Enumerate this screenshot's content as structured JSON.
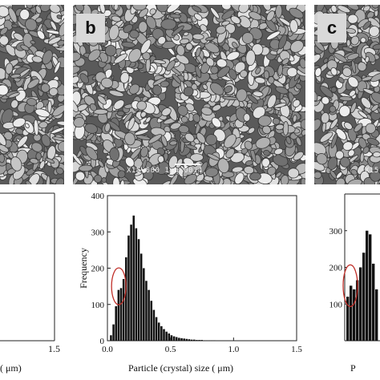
{
  "figure": {
    "panels": [
      {
        "label": "",
        "scale_text": ""
      },
      {
        "label": "b",
        "scale_text": "X15,000  1μm  0014"
      },
      {
        "label": "c",
        "scale_text": "X15"
      }
    ],
    "left_chart": {
      "tick_x_right": "1.5",
      "xlabel_fragment": "( μm)"
    },
    "right_chart": {
      "xlabel_fragment": "P",
      "yticks": [
        "300",
        "200",
        "100"
      ]
    }
  },
  "chart_data": {
    "type": "bar",
    "xlabel": "Particle (crystal) size ( μm)",
    "ylabel": "Frequency",
    "xlim": [
      0.0,
      1.5
    ],
    "ylim": [
      0,
      400
    ],
    "xticks": [
      "0.0",
      "0.5",
      "1.0",
      "1.5"
    ],
    "yticks": [
      "0",
      "100",
      "200",
      "300",
      "400"
    ],
    "bin_width": 0.02,
    "x": [
      0.03,
      0.05,
      0.07,
      0.09,
      0.11,
      0.13,
      0.15,
      0.17,
      0.19,
      0.21,
      0.23,
      0.25,
      0.27,
      0.29,
      0.31,
      0.33,
      0.35,
      0.37,
      0.39,
      0.41,
      0.43,
      0.45,
      0.47,
      0.49,
      0.51,
      0.53,
      0.55,
      0.57,
      0.59,
      0.61,
      0.63,
      0.65,
      0.67,
      0.69,
      0.71,
      0.73,
      0.75,
      0.77,
      0.79,
      0.81,
      0.83,
      0.85
    ],
    "values": [
      15,
      45,
      95,
      140,
      145,
      170,
      230,
      290,
      320,
      345,
      310,
      280,
      240,
      200,
      165,
      140,
      110,
      85,
      65,
      50,
      40,
      32,
      25,
      20,
      15,
      12,
      10,
      8,
      7,
      6,
      5,
      4,
      3,
      3,
      2,
      2,
      2,
      1,
      1,
      1,
      1,
      1
    ],
    "colors": {
      "bar": "#111111",
      "circle": "#c0302a"
    }
  }
}
